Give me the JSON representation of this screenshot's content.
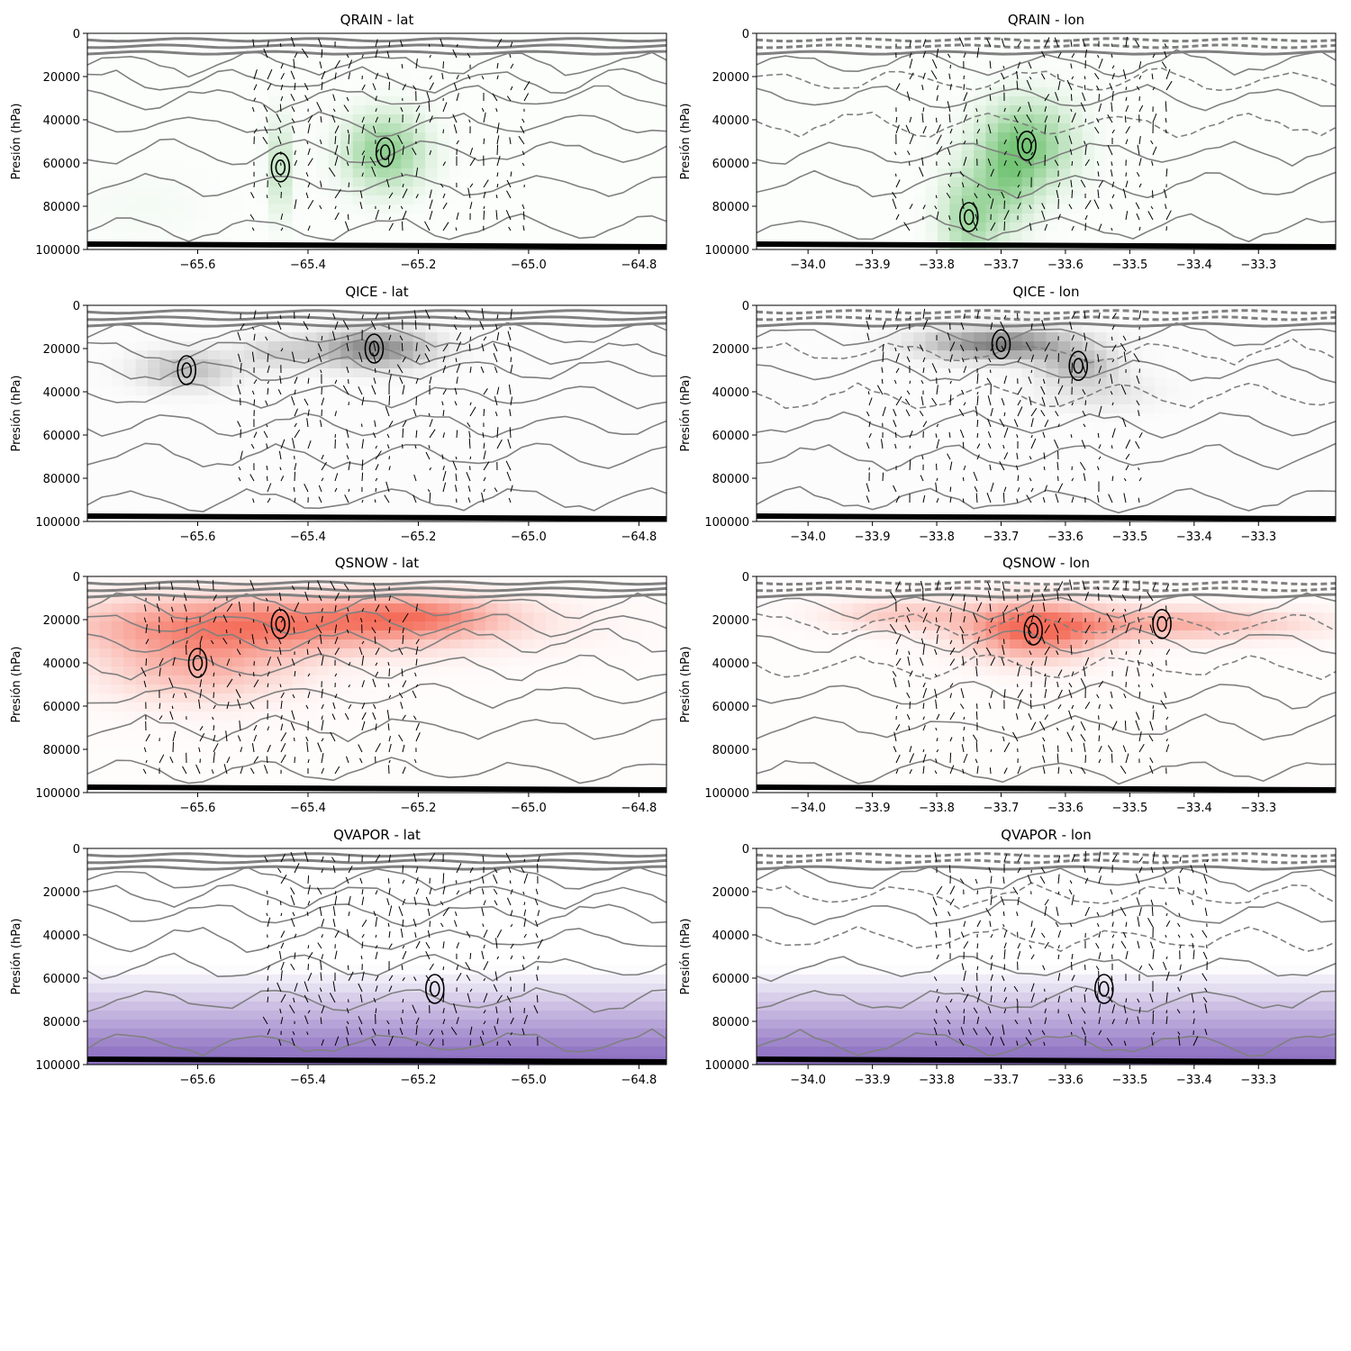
{
  "figure": {
    "panels": [
      {
        "id": "qrain-lat",
        "title": "QRAIN - lat",
        "colormap": "greens",
        "axis": "lat"
      },
      {
        "id": "qrain-lon",
        "title": "QRAIN - lon",
        "colormap": "greens",
        "axis": "lon"
      },
      {
        "id": "qice-lat",
        "title": "QICE - lat",
        "colormap": "greys",
        "axis": "lat"
      },
      {
        "id": "qice-lon",
        "title": "QICE - lon",
        "colormap": "greys",
        "axis": "lon"
      },
      {
        "id": "qsnow-lat",
        "title": "QSNOW - lat",
        "colormap": "reds",
        "axis": "lat"
      },
      {
        "id": "qsnow-lon",
        "title": "QSNOW - lon",
        "colormap": "reds",
        "axis": "lon"
      },
      {
        "id": "qvapor-lat",
        "title": "QVAPOR - lat",
        "colormap": "purples",
        "axis": "lat"
      },
      {
        "id": "qvapor-lon",
        "title": "QVAPOR - lon",
        "colormap": "purples",
        "axis": "lon"
      }
    ],
    "colormaps": {
      "greens": "#74c476",
      "greys": "#737373",
      "reds": "#f46d5a",
      "purples": "#8a6cc0"
    }
  },
  "chart_data": [
    {
      "type": "heatmap",
      "title": "QRAIN - lat",
      "ylabel": "Presión (hPa)",
      "xlim": [
        -65.8,
        -64.75
      ],
      "ylim": [
        100000,
        0
      ],
      "xticks": [
        "−65.6",
        "−65.4",
        "−65.2",
        "−65.0",
        "−64.8"
      ],
      "xtick_values": [
        -65.6,
        -65.4,
        -65.2,
        -65.0,
        -64.8
      ],
      "yticks": [
        "0",
        "20000",
        "40000",
        "60000",
        "80000",
        "100000"
      ],
      "ytick_values": [
        0,
        20000,
        40000,
        60000,
        80000,
        100000
      ],
      "overlays": [
        "gray contours",
        "black contours",
        "wind vectors"
      ],
      "shading_cores": [
        {
          "x": -65.26,
          "p": 55000,
          "sx": 0.05,
          "sp": 12000,
          "w": 0.8
        },
        {
          "x": -65.45,
          "p": 62000,
          "sx": 0.015,
          "sp": 15000,
          "w": 0.45
        },
        {
          "x": -65.7,
          "p": 80000,
          "sx": 0.08,
          "sp": 10000,
          "w": 0.06
        }
      ]
    },
    {
      "type": "heatmap",
      "title": "QRAIN - lon",
      "ylabel": "Presión (hPa)",
      "xlim": [
        -34.08,
        -33.18
      ],
      "ylim": [
        100000,
        0
      ],
      "xticks": [
        "−34.0",
        "−33.9",
        "−33.8",
        "−33.7",
        "−33.6",
        "−33.5",
        "−33.4",
        "−33.3"
      ],
      "xtick_values": [
        -34.0,
        -33.9,
        -33.8,
        -33.7,
        -33.6,
        -33.5,
        -33.4,
        -33.3
      ],
      "yticks": [
        "0",
        "20000",
        "40000",
        "60000",
        "80000",
        "100000"
      ],
      "ytick_values": [
        0,
        20000,
        40000,
        60000,
        80000,
        100000
      ],
      "overlays": [
        "gray contours",
        "gray dashed contours",
        "black contours",
        "wind vectors"
      ],
      "shading_cores": [
        {
          "x": -33.66,
          "p": 52000,
          "sx": 0.05,
          "sp": 14000,
          "w": 0.85
        },
        {
          "x": -33.75,
          "p": 85000,
          "sx": 0.03,
          "sp": 15000,
          "w": 0.65
        },
        {
          "x": -33.69,
          "p": 70000,
          "sx": 0.03,
          "sp": 15000,
          "w": 0.5
        }
      ]
    },
    {
      "type": "heatmap",
      "title": "QICE - lat",
      "ylabel": "Presión (hPa)",
      "xlim": [
        -65.8,
        -64.75
      ],
      "ylim": [
        100000,
        0
      ],
      "xticks": [
        "−65.6",
        "−65.4",
        "−65.2",
        "−65.0",
        "−64.8"
      ],
      "xtick_values": [
        -65.6,
        -65.4,
        -65.2,
        -65.0,
        -64.8
      ],
      "yticks": [
        "0",
        "20000",
        "40000",
        "60000",
        "80000",
        "100000"
      ],
      "ytick_values": [
        0,
        20000,
        40000,
        60000,
        80000,
        100000
      ],
      "overlays": [
        "gray contours",
        "gray dashed contours",
        "black contours",
        "wind vectors"
      ],
      "shading_cores": [
        {
          "x": -65.28,
          "p": 20000,
          "sx": 0.07,
          "sp": 6000,
          "w": 0.85
        },
        {
          "x": -65.62,
          "p": 30000,
          "sx": 0.06,
          "sp": 6000,
          "w": 0.45
        },
        {
          "x": -65.45,
          "p": 22000,
          "sx": 0.05,
          "sp": 5000,
          "w": 0.3
        }
      ]
    },
    {
      "type": "heatmap",
      "title": "QICE - lon",
      "ylabel": "Presión (hPa)",
      "xlim": [
        -34.08,
        -33.18
      ],
      "ylim": [
        100000,
        0
      ],
      "xticks": [
        "−34.0",
        "−33.9",
        "−33.8",
        "−33.7",
        "−33.6",
        "−33.5",
        "−33.4",
        "−33.3"
      ],
      "xtick_values": [
        -34.0,
        -33.9,
        -33.8,
        -33.7,
        -33.6,
        -33.5,
        -33.4,
        -33.3
      ],
      "yticks": [
        "0",
        "20000",
        "40000",
        "60000",
        "80000",
        "100000"
      ],
      "ytick_values": [
        0,
        20000,
        40000,
        60000,
        80000,
        100000
      ],
      "overlays": [
        "gray contours",
        "gray dashed contours",
        "black contours",
        "wind vectors"
      ],
      "shading_cores": [
        {
          "x": -33.7,
          "p": 18000,
          "sx": 0.08,
          "sp": 5000,
          "w": 0.9
        },
        {
          "x": -33.58,
          "p": 28000,
          "sx": 0.04,
          "sp": 5000,
          "w": 0.5
        },
        {
          "x": -33.55,
          "p": 40000,
          "sx": 0.06,
          "sp": 6000,
          "w": 0.2
        }
      ]
    },
    {
      "type": "heatmap",
      "title": "QSNOW - lat",
      "ylabel": "Presión (hPa)",
      "xlim": [
        -65.8,
        -64.75
      ],
      "ylim": [
        100000,
        0
      ],
      "xticks": [
        "−65.6",
        "−65.4",
        "−65.2",
        "−65.0",
        "−64.8"
      ],
      "xtick_values": [
        -65.6,
        -65.4,
        -65.2,
        -65.0,
        -64.8
      ],
      "yticks": [
        "0",
        "20000",
        "40000",
        "60000",
        "80000",
        "100000"
      ],
      "ytick_values": [
        0,
        20000,
        40000,
        60000,
        80000,
        100000
      ],
      "overlays": [
        "gray contours",
        "gray dashed contours",
        "black contours",
        "wind vectors"
      ],
      "shading_cores": [
        {
          "x": -65.45,
          "p": 22000,
          "sx": 0.25,
          "sp": 9000,
          "w": 0.85
        },
        {
          "x": -65.6,
          "p": 40000,
          "sx": 0.12,
          "sp": 12000,
          "w": 0.5
        },
        {
          "x": -65.2,
          "p": 18000,
          "sx": 0.1,
          "sp": 6000,
          "w": 0.5
        }
      ]
    },
    {
      "type": "heatmap",
      "title": "QSNOW - lon",
      "ylabel": "Presión (hPa)",
      "xlim": [
        -34.08,
        -33.18
      ],
      "ylim": [
        100000,
        0
      ],
      "xticks": [
        "−34.0",
        "−33.9",
        "−33.8",
        "−33.7",
        "−33.6",
        "−33.5",
        "−33.4",
        "−33.3"
      ],
      "xtick_values": [
        -34.0,
        -33.9,
        -33.8,
        -33.7,
        -33.6,
        -33.5,
        -33.4,
        -33.3
      ],
      "yticks": [
        "0",
        "20000",
        "40000",
        "60000",
        "80000",
        "100000"
      ],
      "ytick_values": [
        0,
        20000,
        40000,
        60000,
        80000,
        100000
      ],
      "overlays": [
        "gray contours",
        "gray dashed contours",
        "black contours",
        "wind vectors"
      ],
      "shading_cores": [
        {
          "x": -33.65,
          "p": 25000,
          "sx": 0.07,
          "sp": 9000,
          "w": 0.95
        },
        {
          "x": -33.45,
          "p": 22000,
          "sx": 0.15,
          "sp": 5000,
          "w": 0.55
        },
        {
          "x": -33.85,
          "p": 18000,
          "sx": 0.08,
          "sp": 5000,
          "w": 0.35
        }
      ]
    },
    {
      "type": "heatmap",
      "title": "QVAPOR - lat",
      "ylabel": "Presión (hPa)",
      "xlim": [
        -65.8,
        -64.75
      ],
      "ylim": [
        100000,
        0
      ],
      "xticks": [
        "−65.6",
        "−65.4",
        "−65.2",
        "−65.0",
        "−64.8"
      ],
      "xtick_values": [
        -65.6,
        -65.4,
        -65.2,
        -65.0,
        -64.8
      ],
      "yticks": [
        "0",
        "20000",
        "40000",
        "60000",
        "80000",
        "100000"
      ],
      "ytick_values": [
        0,
        20000,
        40000,
        60000,
        80000,
        100000
      ],
      "overlays": [
        "gray contours",
        "gray dashed contours",
        "black contours",
        "wind vectors"
      ],
      "shading": "increases with pressure"
    },
    {
      "type": "heatmap",
      "title": "QVAPOR - lon",
      "ylabel": "Presión (hPa)",
      "xlim": [
        -34.08,
        -33.18
      ],
      "ylim": [
        100000,
        0
      ],
      "xticks": [
        "−34.0",
        "−33.9",
        "−33.8",
        "−33.7",
        "−33.6",
        "−33.5",
        "−33.4",
        "−33.3"
      ],
      "xtick_values": [
        -34.0,
        -33.9,
        -33.8,
        -33.7,
        -33.6,
        -33.5,
        -33.4,
        -33.3
      ],
      "yticks": [
        "0",
        "20000",
        "40000",
        "60000",
        "80000",
        "100000"
      ],
      "ytick_values": [
        0,
        20000,
        40000,
        60000,
        80000,
        100000
      ],
      "overlays": [
        "gray contours",
        "gray dashed contours",
        "black contours",
        "wind vectors"
      ],
      "shading": "increases with pressure"
    }
  ]
}
